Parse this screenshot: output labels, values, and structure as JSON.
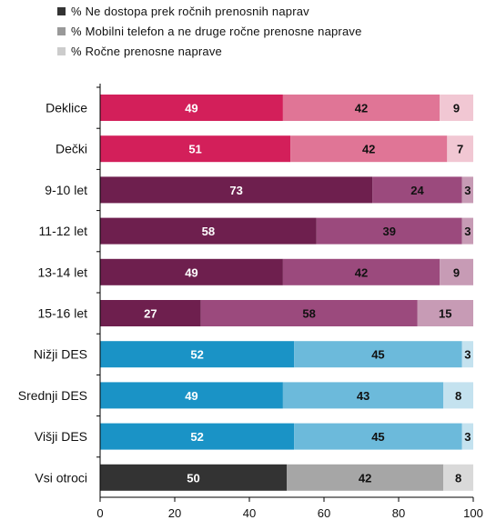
{
  "chart_data": {
    "type": "bar",
    "orientation": "horizontal",
    "stacked": true,
    "categories": [
      "Deklice",
      "Dečki",
      "9-10 let",
      "11-12 let",
      "13-14 let",
      "15-16 let",
      "Nižji DES",
      "Srednji DES",
      "Višji DES",
      "Vsi otroci"
    ],
    "series": [
      {
        "name": "% Ne dostopa prek ročnih prenosnih naprav",
        "values": [
          49,
          51,
          73,
          58,
          49,
          27,
          52,
          49,
          52,
          50
        ]
      },
      {
        "name": "% Mobilni telefon a ne druge ročne prenosne naprave",
        "values": [
          42,
          42,
          24,
          39,
          42,
          58,
          45,
          43,
          45,
          42
        ]
      },
      {
        "name": "% Ročne prenosne naprave",
        "values": [
          9,
          7,
          3,
          3,
          9,
          15,
          3,
          8,
          3,
          8
        ]
      }
    ],
    "xlim": [
      0,
      100
    ],
    "x_ticks": [
      0,
      20,
      40,
      60,
      80,
      100
    ],
    "legend_position": "top-left",
    "grid": false,
    "legend_colors": [
      "#333333",
      "#999999",
      "#cccccc"
    ],
    "group_colors": [
      [
        "#d31f5a",
        "#e07596",
        "#f1c7d3"
      ],
      [
        "#d31f5a",
        "#e07596",
        "#f1c7d3"
      ],
      [
        "#6e1f4e",
        "#9b4a7d",
        "#c79bb5"
      ],
      [
        "#6e1f4e",
        "#9b4a7d",
        "#c79bb5"
      ],
      [
        "#6e1f4e",
        "#9b4a7d",
        "#c79bb5"
      ],
      [
        "#6e1f4e",
        "#9b4a7d",
        "#c79bb5"
      ],
      [
        "#1a93c6",
        "#6cbadb",
        "#c4e2ef"
      ],
      [
        "#1a93c6",
        "#6cbadb",
        "#c4e2ef"
      ],
      [
        "#1a93c6",
        "#6cbadb",
        "#c4e2ef"
      ],
      [
        "#333333",
        "#a6a6a6",
        "#d9d9d9"
      ]
    ],
    "label_colors": [
      "#ffffff",
      "#111111",
      "#111111"
    ]
  }
}
